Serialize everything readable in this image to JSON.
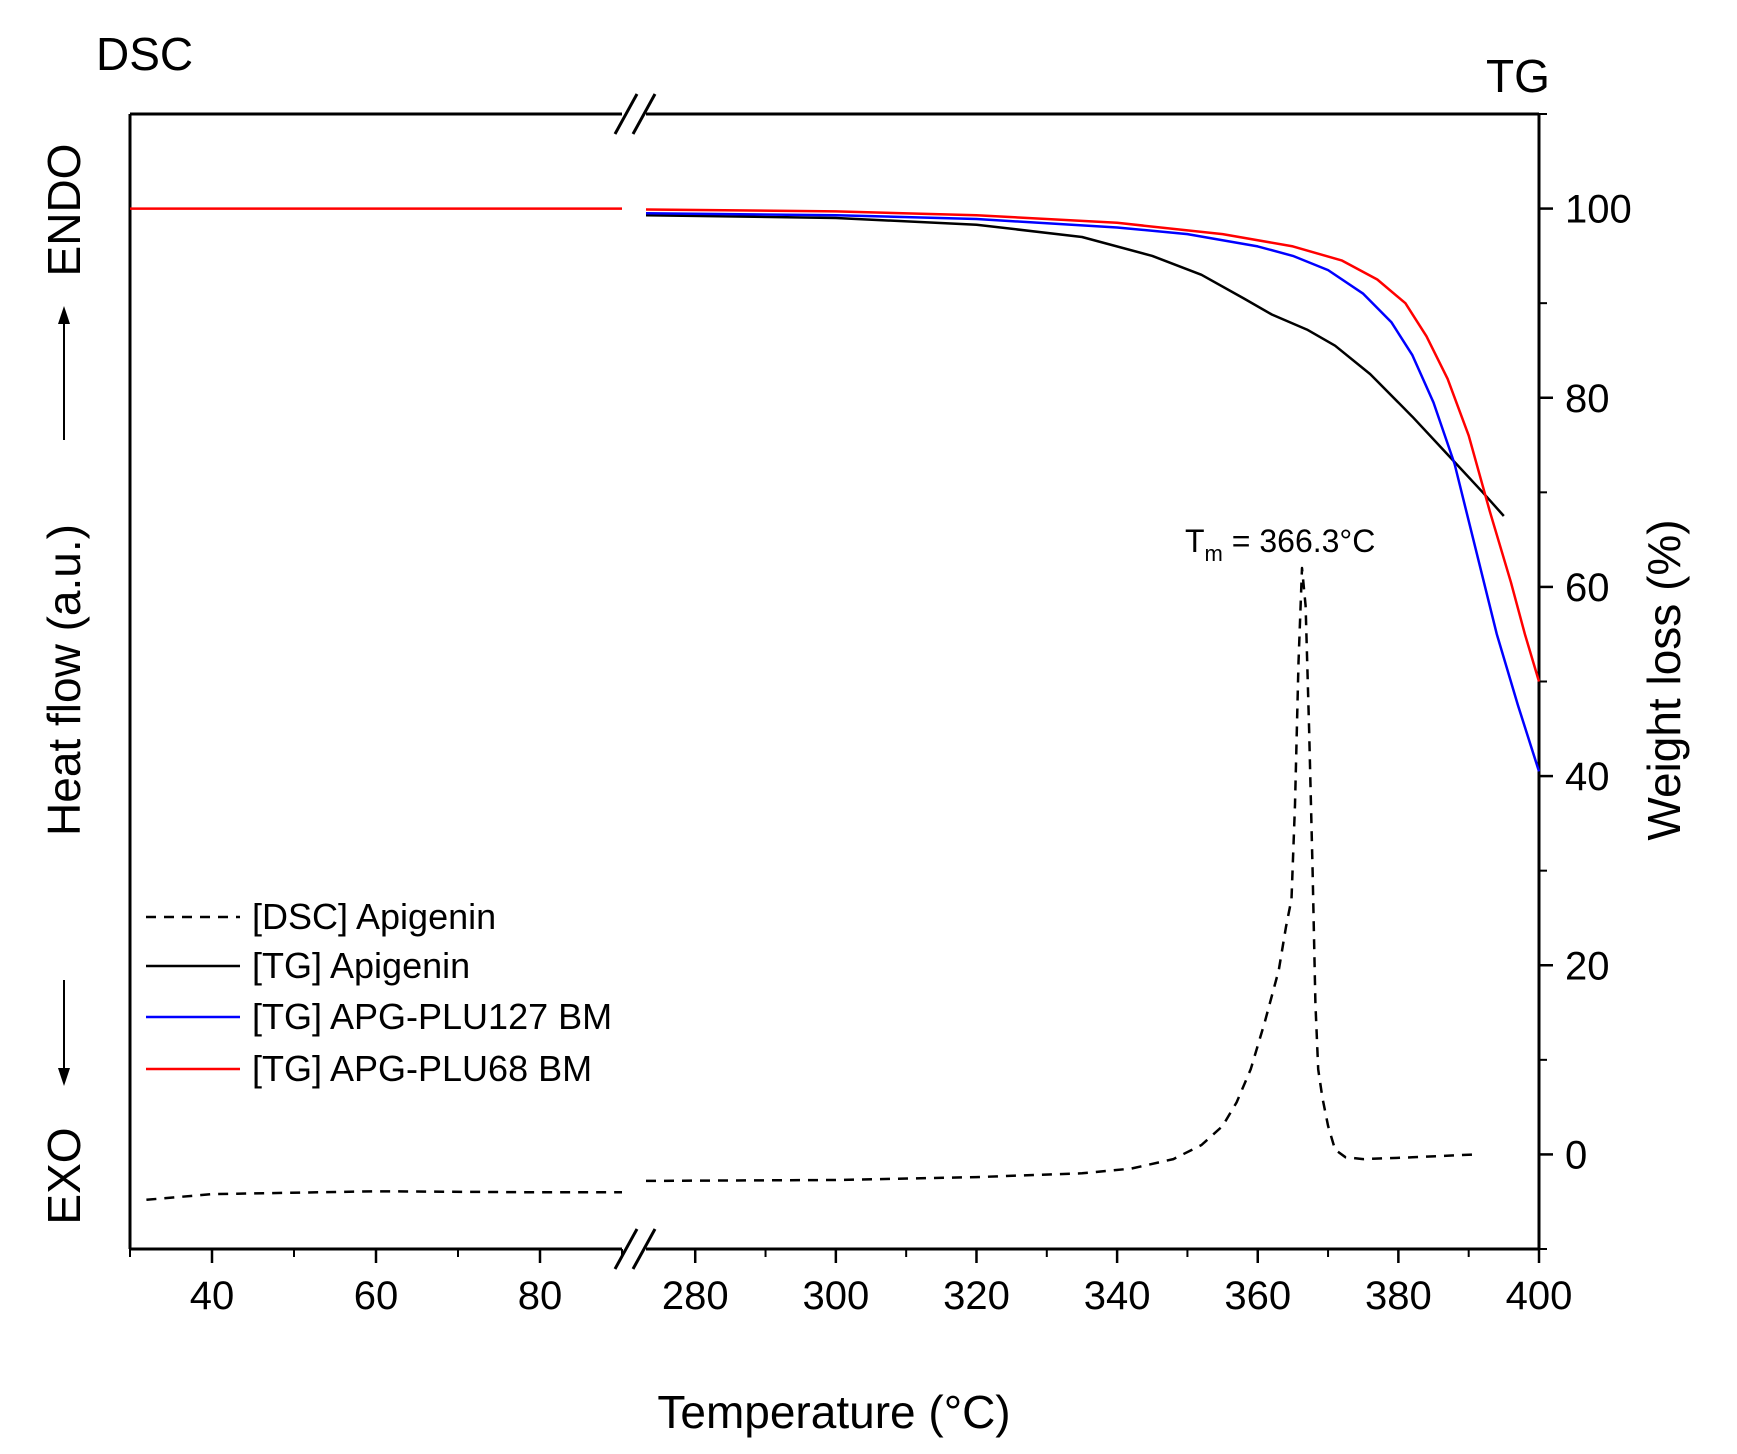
{
  "chart_data": {
    "type": "line",
    "title": "",
    "corner_left": "DSC",
    "corner_right": "TG",
    "xlabel": "Temperature (°C)",
    "ylabel_left": "Heat flow (a.u.)",
    "ylabel_right": "Weight loss (%)",
    "endo_label": "ENDO",
    "exo_label": "EXO",
    "x_break": [
      90,
      273
    ],
    "xlim": [
      30,
      400
    ],
    "ylim_right": [
      -10,
      110
    ],
    "x_ticks": [
      40,
      60,
      80,
      280,
      300,
      320,
      340,
      360,
      380,
      400
    ],
    "y_ticks_right": [
      0,
      20,
      40,
      60,
      80,
      100
    ],
    "annotation": {
      "text_main": "T",
      "text_sub": "m",
      "text_rest": " = 366.3°C",
      "x": 366.3,
      "y": 62
    },
    "legend_position": "bottom-left",
    "series": [
      {
        "name": "[DSC] Apigenin",
        "color": "#000000",
        "dash": "dashed",
        "segments": [
          [
            [
              32,
              -4.8
            ],
            [
              40,
              -4.2
            ],
            [
              60,
              -3.9
            ],
            [
              80,
              -4.0
            ],
            [
              90,
              -4.0
            ]
          ],
          [
            [
              273,
              -2.8
            ],
            [
              300,
              -2.7
            ],
            [
              320,
              -2.4
            ],
            [
              335,
              -2.0
            ],
            [
              342,
              -1.5
            ],
            [
              348,
              -0.5
            ],
            [
              352,
              1.0
            ],
            [
              355,
              3.0
            ],
            [
              357,
              5.5
            ],
            [
              359,
              9.0
            ],
            [
              361,
              14.0
            ],
            [
              363,
              19.5
            ],
            [
              364,
              24.0
            ],
            [
              364.8,
              27.0
            ],
            [
              365.3,
              37.0
            ],
            [
              365.8,
              52.0
            ],
            [
              366.3,
              62.0
            ],
            [
              366.8,
              58.0
            ],
            [
              367.3,
              45.0
            ],
            [
              367.8,
              30.0
            ],
            [
              368.2,
              16.0
            ],
            [
              368.6,
              9.0
            ],
            [
              369.2,
              6.0
            ],
            [
              370.0,
              3.0
            ],
            [
              371.0,
              0.5
            ],
            [
              372.5,
              -0.3
            ],
            [
              375,
              -0.5
            ],
            [
              382,
              -0.3
            ],
            [
              391,
              0.0
            ]
          ]
        ]
      },
      {
        "name": "[TG] Apigenin",
        "color": "#000000",
        "dash": "solid",
        "segments": [
          [
            [
              273,
              99.3
            ],
            [
              300,
              99.0
            ],
            [
              320,
              98.3
            ],
            [
              335,
              97.0
            ],
            [
              345,
              95.0
            ],
            [
              352,
              93.0
            ],
            [
              358,
              90.5
            ],
            [
              362,
              88.8
            ],
            [
              367,
              87.2
            ],
            [
              371,
              85.5
            ],
            [
              376,
              82.5
            ],
            [
              382,
              78.0
            ],
            [
              387,
              74.0
            ],
            [
              392,
              70.0
            ],
            [
              395,
              67.5
            ]
          ]
        ]
      },
      {
        "name": "[TG] APG-PLU127 BM",
        "color": "#0000ff",
        "dash": "solid",
        "segments": [
          [
            [
              273,
              99.5
            ],
            [
              300,
              99.3
            ],
            [
              320,
              98.9
            ],
            [
              340,
              98.0
            ],
            [
              350,
              97.3
            ],
            [
              360,
              96.0
            ],
            [
              365,
              95.0
            ],
            [
              370,
              93.5
            ],
            [
              375,
              91.0
            ],
            [
              379,
              88.0
            ],
            [
              382,
              84.5
            ],
            [
              385,
              79.5
            ],
            [
              388,
              73.0
            ],
            [
              391,
              64.0
            ],
            [
              394,
              55.0
            ],
            [
              397,
              47.5
            ],
            [
              400,
              40.5
            ]
          ]
        ]
      },
      {
        "name": "[TG] APG-PLU68 BM",
        "color": "#ff0000",
        "dash": "solid",
        "segments": [
          [
            [
              30,
              100.0
            ],
            [
              60,
              100.0
            ],
            [
              90,
              100.0
            ]
          ],
          [
            [
              273,
              99.9
            ],
            [
              300,
              99.7
            ],
            [
              320,
              99.3
            ],
            [
              340,
              98.5
            ],
            [
              355,
              97.3
            ],
            [
              365,
              96.0
            ],
            [
              372,
              94.5
            ],
            [
              377,
              92.5
            ],
            [
              381,
              90.0
            ],
            [
              384,
              86.5
            ],
            [
              387,
              82.0
            ],
            [
              390,
              76.0
            ],
            [
              393,
              68.0
            ],
            [
              396,
              60.5
            ],
            [
              398,
              55.0
            ],
            [
              400,
              50.0
            ]
          ]
        ]
      }
    ]
  }
}
